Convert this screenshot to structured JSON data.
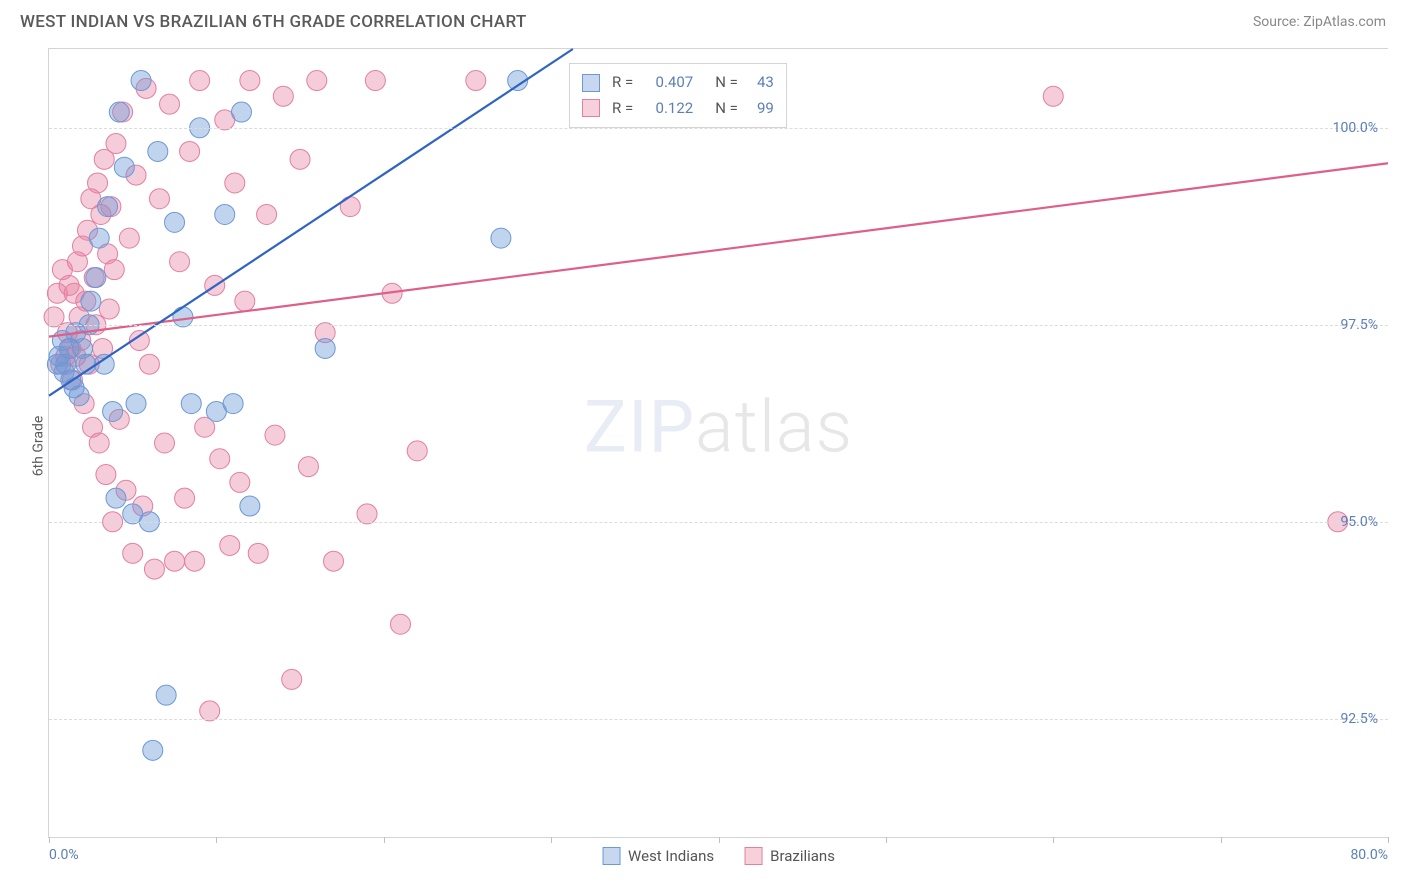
{
  "header": {
    "title": "WEST INDIAN VS BRAZILIAN 6TH GRADE CORRELATION CHART",
    "source_label": "Source: ZipAtlas.com"
  },
  "watermark": {
    "part1": "ZIP",
    "part2": "atlas"
  },
  "chart": {
    "type": "scatter",
    "ylabel": "6th Grade",
    "xlim": [
      0,
      80
    ],
    "ylim": [
      91.0,
      101.0
    ],
    "yticks": [
      92.5,
      95.0,
      97.5,
      100.0
    ],
    "ytick_labels": [
      "92.5%",
      "95.0%",
      "97.5%",
      "100.0%"
    ],
    "xticks": [
      0,
      10,
      20,
      30,
      40,
      50,
      60,
      70,
      80
    ],
    "xtick_labels_shown": {
      "0": "0.0%",
      "80": "80.0%"
    },
    "grid_color": "#dcdcdc",
    "background_color": "#ffffff",
    "axis_color": "#d4d4d4",
    "tick_label_color": "#5b7fb8",
    "tick_label_fontsize": 14,
    "axis_label_fontsize": 14,
    "marker_radius": 10,
    "marker_opacity": 0.45,
    "line_width": 2.2,
    "series": [
      {
        "name": "West Indians",
        "point_fill": "rgba(108,152,214,0.42)",
        "point_stroke": "#6c98d6",
        "line_color": "#2f64c2",
        "swatch_fill": "#c6d7ef",
        "swatch_border": "#6c98d6",
        "R": "0.407",
        "N": "43",
        "regression": {
          "x1": 0,
          "y1": 96.6,
          "x2": 31.3,
          "y2": 101.0
        },
        "points": [
          [
            0.5,
            97.0
          ],
          [
            0.6,
            97.1
          ],
          [
            0.8,
            97.3
          ],
          [
            0.9,
            96.9
          ],
          [
            1.0,
            97.0
          ],
          [
            1.2,
            97.2
          ],
          [
            1.3,
            96.8
          ],
          [
            1.5,
            96.7
          ],
          [
            1.6,
            97.4
          ],
          [
            1.8,
            96.6
          ],
          [
            2.0,
            97.2
          ],
          [
            2.2,
            97.0
          ],
          [
            2.4,
            97.5
          ],
          [
            2.5,
            97.8
          ],
          [
            2.8,
            98.1
          ],
          [
            3.0,
            98.6
          ],
          [
            3.3,
            97.0
          ],
          [
            3.5,
            99.0
          ],
          [
            3.8,
            96.4
          ],
          [
            4.0,
            95.3
          ],
          [
            4.2,
            100.2
          ],
          [
            4.5,
            99.5
          ],
          [
            5.0,
            95.1
          ],
          [
            5.2,
            96.5
          ],
          [
            5.5,
            100.6
          ],
          [
            6.0,
            95.0
          ],
          [
            6.2,
            92.1
          ],
          [
            6.5,
            99.7
          ],
          [
            7.0,
            92.8
          ],
          [
            7.5,
            98.8
          ],
          [
            8.0,
            97.6
          ],
          [
            8.5,
            96.5
          ],
          [
            9.0,
            100.0
          ],
          [
            10.0,
            96.4
          ],
          [
            10.5,
            98.9
          ],
          [
            11.0,
            96.5
          ],
          [
            11.5,
            100.2
          ],
          [
            12.0,
            95.2
          ],
          [
            16.5,
            97.2
          ],
          [
            27.0,
            98.6
          ],
          [
            28.0,
            100.6
          ]
        ]
      },
      {
        "name": "Brazilians",
        "point_fill": "rgba(231,128,160,0.40)",
        "point_stroke": "#e37fa0",
        "line_color": "#de5f89",
        "swatch_fill": "#f6d1dc",
        "swatch_border": "#e37fa0",
        "R": "0.122",
        "N": "99",
        "regression": {
          "x1": 0,
          "y1": 97.35,
          "x2": 80,
          "y2": 99.55
        },
        "points": [
          [
            0.3,
            97.6
          ],
          [
            0.5,
            97.9
          ],
          [
            0.7,
            97.0
          ],
          [
            0.8,
            98.2
          ],
          [
            1.0,
            97.1
          ],
          [
            1.1,
            97.4
          ],
          [
            1.2,
            98.0
          ],
          [
            1.3,
            97.2
          ],
          [
            1.4,
            96.8
          ],
          [
            1.5,
            97.9
          ],
          [
            1.6,
            97.1
          ],
          [
            1.7,
            98.3
          ],
          [
            1.8,
            97.6
          ],
          [
            1.9,
            97.3
          ],
          [
            2.0,
            98.5
          ],
          [
            2.1,
            96.5
          ],
          [
            2.2,
            97.8
          ],
          [
            2.3,
            98.7
          ],
          [
            2.4,
            97.0
          ],
          [
            2.5,
            99.1
          ],
          [
            2.6,
            96.2
          ],
          [
            2.7,
            98.1
          ],
          [
            2.8,
            97.5
          ],
          [
            2.9,
            99.3
          ],
          [
            3.0,
            96.0
          ],
          [
            3.1,
            98.9
          ],
          [
            3.2,
            97.2
          ],
          [
            3.3,
            99.6
          ],
          [
            3.4,
            95.6
          ],
          [
            3.5,
            98.4
          ],
          [
            3.6,
            97.7
          ],
          [
            3.7,
            99.0
          ],
          [
            3.8,
            95.0
          ],
          [
            3.9,
            98.2
          ],
          [
            4.0,
            99.8
          ],
          [
            4.2,
            96.3
          ],
          [
            4.4,
            100.2
          ],
          [
            4.6,
            95.4
          ],
          [
            4.8,
            98.6
          ],
          [
            5.0,
            94.6
          ],
          [
            5.2,
            99.4
          ],
          [
            5.4,
            97.3
          ],
          [
            5.6,
            95.2
          ],
          [
            5.8,
            100.5
          ],
          [
            6.0,
            97.0
          ],
          [
            6.3,
            94.4
          ],
          [
            6.6,
            99.1
          ],
          [
            6.9,
            96.0
          ],
          [
            7.2,
            100.3
          ],
          [
            7.5,
            94.5
          ],
          [
            7.8,
            98.3
          ],
          [
            8.1,
            95.3
          ],
          [
            8.4,
            99.7
          ],
          [
            8.7,
            94.5
          ],
          [
            9.0,
            100.6
          ],
          [
            9.3,
            96.2
          ],
          [
            9.6,
            92.6
          ],
          [
            9.9,
            98.0
          ],
          [
            10.2,
            95.8
          ],
          [
            10.5,
            100.1
          ],
          [
            10.8,
            94.7
          ],
          [
            11.1,
            99.3
          ],
          [
            11.4,
            95.5
          ],
          [
            11.7,
            97.8
          ],
          [
            12.0,
            100.6
          ],
          [
            12.5,
            94.6
          ],
          [
            13.0,
            98.9
          ],
          [
            13.5,
            96.1
          ],
          [
            14.0,
            100.4
          ],
          [
            14.5,
            93.0
          ],
          [
            15.0,
            99.6
          ],
          [
            15.5,
            95.7
          ],
          [
            16.0,
            100.6
          ],
          [
            16.5,
            97.4
          ],
          [
            17.0,
            94.5
          ],
          [
            18.0,
            99.0
          ],
          [
            19.0,
            95.1
          ],
          [
            19.5,
            100.6
          ],
          [
            20.5,
            97.9
          ],
          [
            21.0,
            93.7
          ],
          [
            22.0,
            95.9
          ],
          [
            25.5,
            100.6
          ],
          [
            60.0,
            100.4
          ],
          [
            77.0,
            95.0
          ]
        ]
      }
    ]
  },
  "legend_top": {
    "r_label": "R =",
    "n_label": "N ="
  },
  "legend_bottom": {
    "items": [
      "West Indians",
      "Brazilians"
    ]
  }
}
